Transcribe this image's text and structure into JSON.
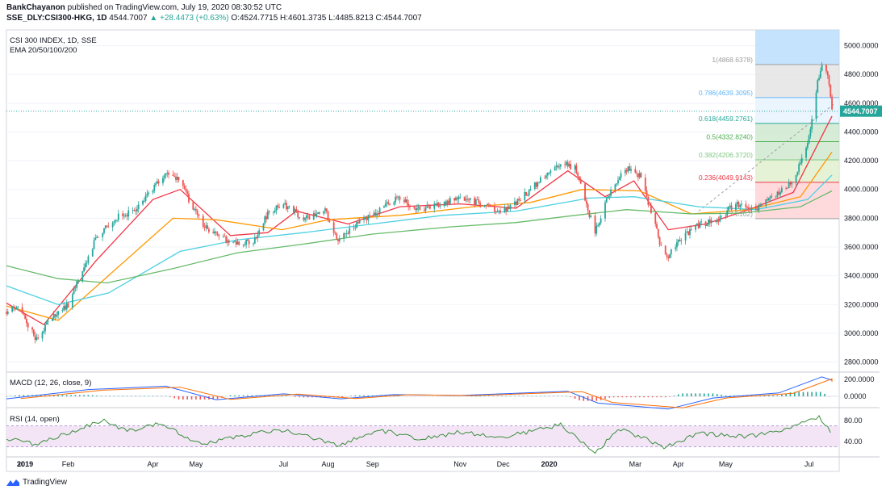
{
  "header": {
    "author": "BankChayanon",
    "published_text": "published on TradingView.com, July 19, 2020 08:30:52 UTC",
    "symbol": "SSE_DLY:CSI300-HKG, 1D",
    "last": "4544.7007",
    "change": "▲ +28.4473 (+0.63%)",
    "ohlc": "O:4524.7715 H:4601.3735 L:4485.8213 C:4544.7007"
  },
  "main_pane": {
    "title": "CSI 300 INDEX, 1D, SSE",
    "indicator": "EMA 20/50/100/200"
  },
  "macd_pane": {
    "label": "MACD (12, 26, close, 9)"
  },
  "rsi_pane": {
    "label": "RSI (14, open)"
  },
  "footer": {
    "brand": "TradingView"
  },
  "colors": {
    "up": "#26a69a",
    "down": "#ef5350",
    "ema20": "#f23645",
    "ema50": "#ff9800",
    "ema100": "#4dd0e1",
    "ema200": "#66bb6a",
    "price_tag": "#26a69a",
    "macd": "#2962ff",
    "signal": "#ff6d00",
    "rsi": "#388e3c",
    "rsi_band": "#f3e5f5"
  },
  "chart_data": [
    {
      "type": "candlestick",
      "title": "CSI 300 INDEX, 1D, SSE",
      "y_axis": {
        "ticks": [
          "5000.0000",
          "4800.0000",
          "4600.0000",
          "4400.0000",
          "4200.0000",
          "4000.0000",
          "3800.0000",
          "3600.0000",
          "3400.0000",
          "3200.0000",
          "3000.0000",
          "2800.0000"
        ],
        "range": [
          2730,
          5110
        ]
      },
      "x_axis": {
        "ticks": [
          "30",
          "2019",
          "Feb",
          "Apr",
          "May",
          "Jul",
          "Aug",
          "Sep",
          "Nov",
          "Dec",
          "2020",
          "Mar",
          "Apr",
          "May",
          "Jul"
        ]
      },
      "last_price_label": "4544.7007",
      "price_path": [
        [
          "2018-12-20",
          3150
        ],
        [
          "2018-12-30",
          3180
        ],
        [
          "2019-01-04",
          3050
        ],
        [
          "2019-01-10",
          2960
        ],
        [
          "2019-01-20",
          3100
        ],
        [
          "2019-02-01",
          3200
        ],
        [
          "2019-02-20",
          3650
        ],
        [
          "2019-03-05",
          3800
        ],
        [
          "2019-03-20",
          3850
        ],
        [
          "2019-04-01",
          4000
        ],
        [
          "2019-04-10",
          4110
        ],
        [
          "2019-04-18",
          4080
        ],
        [
          "2019-04-25",
          3950
        ],
        [
          "2019-05-06",
          3750
        ],
        [
          "2019-05-15",
          3680
        ],
        [
          "2019-05-30",
          3620
        ],
        [
          "2019-06-10",
          3640
        ],
        [
          "2019-06-20",
          3830
        ],
        [
          "2019-07-01",
          3900
        ],
        [
          "2019-07-15",
          3800
        ],
        [
          "2019-07-30",
          3850
        ],
        [
          "2019-08-08",
          3650
        ],
        [
          "2019-08-20",
          3750
        ],
        [
          "2019-09-05",
          3850
        ],
        [
          "2019-09-20",
          3950
        ],
        [
          "2019-10-01",
          3850
        ],
        [
          "2019-10-20",
          3900
        ],
        [
          "2019-11-01",
          3950
        ],
        [
          "2019-11-15",
          3900
        ],
        [
          "2019-12-01",
          3850
        ],
        [
          "2019-12-15",
          3950
        ],
        [
          "2020-01-01",
          4120
        ],
        [
          "2020-01-10",
          4180
        ],
        [
          "2020-01-20",
          4150
        ],
        [
          "2020-02-03",
          3700
        ],
        [
          "2020-02-12",
          3950
        ],
        [
          "2020-02-24",
          4150
        ],
        [
          "2020-03-05",
          4100
        ],
        [
          "2020-03-10",
          3950
        ],
        [
          "2020-03-20",
          3600
        ],
        [
          "2020-03-24",
          3530
        ],
        [
          "2020-04-01",
          3650
        ],
        [
          "2020-04-15",
          3750
        ],
        [
          "2020-04-30",
          3800
        ],
        [
          "2020-05-10",
          3900
        ],
        [
          "2020-05-25",
          3850
        ],
        [
          "2020-06-05",
          3950
        ],
        [
          "2020-06-20",
          4050
        ],
        [
          "2020-07-02",
          4400
        ],
        [
          "2020-07-07",
          4750
        ],
        [
          "2020-07-10",
          4850
        ],
        [
          "2020-07-14",
          4800
        ],
        [
          "2020-07-17",
          4545
        ]
      ],
      "ema_series": [
        {
          "name": "EMA 20",
          "points": [
            [
              "2018-12-20",
              3210
            ],
            [
              "2019-01-15",
              3060
            ],
            [
              "2019-02-20",
              3500
            ],
            [
              "2019-04-01",
              3930
            ],
            [
              "2019-04-20",
              4000
            ],
            [
              "2019-05-25",
              3680
            ],
            [
              "2019-06-20",
              3700
            ],
            [
              "2019-07-10",
              3850
            ],
            [
              "2019-08-15",
              3760
            ],
            [
              "2019-09-20",
              3880
            ],
            [
              "2019-11-01",
              3900
            ],
            [
              "2019-12-10",
              3870
            ],
            [
              "2020-01-15",
              4130
            ],
            [
              "2020-02-10",
              3950
            ],
            [
              "2020-03-01",
              4060
            ],
            [
              "2020-03-25",
              3720
            ],
            [
              "2020-04-20",
              3760
            ],
            [
              "2020-05-20",
              3860
            ],
            [
              "2020-06-20",
              3980
            ],
            [
              "2020-07-17",
              4510
            ]
          ]
        },
        {
          "name": "EMA 50",
          "points": [
            [
              "2018-12-20",
              3190
            ],
            [
              "2019-01-25",
              3090
            ],
            [
              "2019-03-01",
              3400
            ],
            [
              "2019-04-15",
              3800
            ],
            [
              "2019-05-15",
              3790
            ],
            [
              "2019-06-30",
              3720
            ],
            [
              "2019-08-01",
              3790
            ],
            [
              "2019-09-20",
              3820
            ],
            [
              "2019-11-10",
              3880
            ],
            [
              "2019-12-20",
              3910
            ],
            [
              "2020-01-25",
              4000
            ],
            [
              "2020-03-05",
              3990
            ],
            [
              "2020-04-10",
              3830
            ],
            [
              "2020-05-20",
              3860
            ],
            [
              "2020-06-25",
              3950
            ],
            [
              "2020-07-17",
              4260
            ]
          ]
        },
        {
          "name": "EMA 100",
          "points": [
            [
              "2018-12-20",
              3330
            ],
            [
              "2019-01-25",
              3200
            ],
            [
              "2019-03-01",
              3280
            ],
            [
              "2019-04-20",
              3570
            ],
            [
              "2019-05-30",
              3650
            ],
            [
              "2019-07-15",
              3700
            ],
            [
              "2019-09-01",
              3760
            ],
            [
              "2019-10-20",
              3820
            ],
            [
              "2019-12-10",
              3850
            ],
            [
              "2020-01-30",
              3940
            ],
            [
              "2020-03-01",
              3950
            ],
            [
              "2020-04-15",
              3880
            ],
            [
              "2020-05-25",
              3860
            ],
            [
              "2020-06-30",
              3930
            ],
            [
              "2020-07-17",
              4100
            ]
          ]
        },
        {
          "name": "EMA 200",
          "points": [
            [
              "2018-12-20",
              3470
            ],
            [
              "2019-01-25",
              3380
            ],
            [
              "2019-02-28",
              3350
            ],
            [
              "2019-04-15",
              3450
            ],
            [
              "2019-05-30",
              3560
            ],
            [
              "2019-07-15",
              3620
            ],
            [
              "2019-09-01",
              3690
            ],
            [
              "2019-10-25",
              3740
            ],
            [
              "2019-12-10",
              3770
            ],
            [
              "2020-01-20",
              3820
            ],
            [
              "2020-02-25",
              3860
            ],
            [
              "2020-04-10",
              3830
            ],
            [
              "2020-05-15",
              3835
            ],
            [
              "2020-06-25",
              3880
            ],
            [
              "2020-07-17",
              3990
            ]
          ]
        }
      ],
      "fibonacci": {
        "levels": [
          {
            "label": "1(4868.6378)",
            "ratio": 1,
            "price": 4868.6378,
            "color": "#9e9e9e"
          },
          {
            "label": "0.786(4639.3095)",
            "ratio": 0.786,
            "price": 4639.3095,
            "color": "#64b5f6"
          },
          {
            "label": "0.618(4459.2761)",
            "ratio": 0.618,
            "price": 4459.2761,
            "color": "#26a69a"
          },
          {
            "label": "0.5(4332.8240)",
            "ratio": 0.5,
            "price": 4332.824,
            "color": "#4caf50"
          },
          {
            "label": "0.382(4206.3720)",
            "ratio": 0.382,
            "price": 4206.372,
            "color": "#81c784"
          },
          {
            "label": "0.236(4049.9143)",
            "ratio": 0.236,
            "price": 4049.9143,
            "color": "#f23645"
          },
          {
            "label": "7.0102)",
            "ratio": 0,
            "price": 3797.0102,
            "color": "#9e9e9e"
          }
        ]
      }
    },
    {
      "type": "line",
      "title": "MACD (12, 26, close, 9)",
      "y_axis": {
        "ticks": [
          "200.0000",
          "0.0000"
        ]
      },
      "series": [
        {
          "name": "MACD"
        },
        {
          "name": "Signal"
        }
      ],
      "points": [
        [
          "2018-12-20",
          -30
        ],
        [
          "2019-02-15",
          80
        ],
        [
          "2019-04-10",
          120
        ],
        [
          "2019-05-15",
          -40
        ],
        [
          "2019-07-01",
          30
        ],
        [
          "2019-08-10",
          -30
        ],
        [
          "2019-09-15",
          20
        ],
        [
          "2019-11-01",
          10
        ],
        [
          "2020-01-15",
          60
        ],
        [
          "2020-02-05",
          -80
        ],
        [
          "2020-03-25",
          -150
        ],
        [
          "2020-04-25",
          -20
        ],
        [
          "2020-06-10",
          40
        ],
        [
          "2020-07-10",
          230
        ],
        [
          "2020-07-17",
          190
        ]
      ]
    },
    {
      "type": "line",
      "title": "RSI (14, open)",
      "y_axis": {
        "ticks": [
          "80.00",
          "40.00"
        ],
        "band": [
          30,
          70
        ]
      },
      "points": [
        [
          "2018-12-20",
          45
        ],
        [
          "2019-01-10",
          35
        ],
        [
          "2019-02-05",
          60
        ],
        [
          "2019-02-25",
          80
        ],
        [
          "2019-03-15",
          60
        ],
        [
          "2019-04-05",
          75
        ],
        [
          "2019-05-05",
          35
        ],
        [
          "2019-06-10",
          55
        ],
        [
          "2019-07-01",
          62
        ],
        [
          "2019-08-08",
          32
        ],
        [
          "2019-09-05",
          62
        ],
        [
          "2019-10-05",
          45
        ],
        [
          "2019-11-01",
          58
        ],
        [
          "2019-12-01",
          48
        ],
        [
          "2020-01-10",
          72
        ],
        [
          "2020-02-03",
          18
        ],
        [
          "2020-02-20",
          65
        ],
        [
          "2020-03-22",
          30
        ],
        [
          "2020-04-15",
          55
        ],
        [
          "2020-05-20",
          50
        ],
        [
          "2020-06-15",
          62
        ],
        [
          "2020-07-08",
          88
        ],
        [
          "2020-07-17",
          55
        ]
      ]
    }
  ]
}
